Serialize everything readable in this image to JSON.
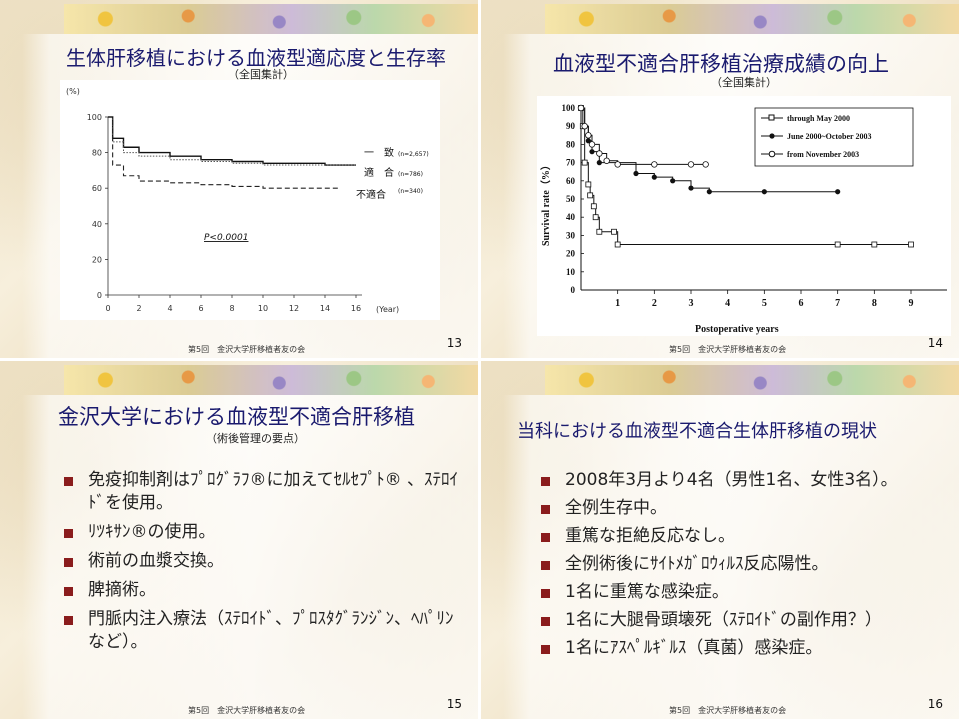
{
  "slides": [
    {
      "title": "生体肝移植における血液型適応度と生存率",
      "subtitle": "（全国集計）",
      "footer": "第5回　金沢大学肝移植者友の会",
      "page": "13",
      "chart": {
        "y_unit": "(%)",
        "x_unit": "(Year)",
        "y_ticks": [
          "0",
          "20",
          "40",
          "60",
          "80",
          "100"
        ],
        "x_ticks": [
          "0",
          "2",
          "4",
          "6",
          "8",
          "10",
          "12",
          "14",
          "16"
        ],
        "annotation": "P<0.0001",
        "legend": [
          {
            "label": "一　致",
            "n": "(n=2,657)"
          },
          {
            "label": "適　合",
            "n": "(n=786)"
          },
          {
            "label": "不適合",
            "n": "(n=340)"
          }
        ]
      }
    },
    {
      "title": "血液型不適合肝移植治療成績の向上",
      "subtitle": "（全国集計）",
      "footer": "第5回　金沢大学肝移植者友の会",
      "page": "14",
      "chart": {
        "ylabel": "Survival rate（%）",
        "xlabel": "Postoperative years",
        "y_ticks": [
          "0",
          "10",
          "20",
          "30",
          "40",
          "50",
          "60",
          "70",
          "80",
          "90",
          "100"
        ],
        "x_ticks": [
          "1",
          "2",
          "3",
          "4",
          "5",
          "6",
          "7",
          "8",
          "9"
        ],
        "legend": [
          "through May 2000",
          "June 2000~October 2003",
          "from November 2003"
        ]
      }
    },
    {
      "title": "金沢大学における血液型不適合肝移植",
      "subtitle": "（術後管理の要点）",
      "footer": "第5回　金沢大学肝移植者友の会",
      "page": "15",
      "bullets": [
        "免疫抑制剤はﾌﾟﾛｸﾞﾗﾌ®に加えてｾﾙｾﾌﾟﾄ® 、ｽﾃﾛｲﾄﾞを使用。",
        "ﾘﾂｷｻﾝ®の使用。",
        "術前の血漿交換。",
        "脾摘術。",
        "門脈内注入療法（ｽﾃﾛｲﾄﾞ、ﾌﾟﾛｽﾀｸﾞﾗﾝｼﾞﾝ、ﾍﾊﾟﾘﾝなど）。"
      ]
    },
    {
      "title": "当科における血液型不適合生体肝移植の現状",
      "footer": "第5回　金沢大学肝移植者友の会",
      "page": "16",
      "bullets": [
        "2008年3月より4名（男性1名、女性3名）。",
        "全例生存中。",
        "重篤な拒絶反応なし。",
        "全例術後にｻｲﾄﾒｶﾞﾛｳｨﾙｽ反応陽性。",
        "1名に重篤な感染症。",
        "1名に大腿骨頭壊死（ｽﾃﾛｲﾄﾞの副作用？）",
        "1名にｱｽﾍﾟﾙｷﾞﾙｽ（真菌）感染症。"
      ]
    }
  ],
  "chart_data": [
    {
      "type": "line",
      "x_unit": "years",
      "ylim": [
        0,
        100
      ],
      "xlim": [
        0,
        16
      ],
      "series": [
        {
          "name": "一　致",
          "x": [
            0,
            0.3,
            1,
            2,
            4,
            6,
            8,
            10,
            12,
            14,
            16
          ],
          "values": [
            100,
            88,
            83,
            80,
            78,
            76,
            75,
            74,
            74,
            73,
            73
          ]
        },
        {
          "name": "適　合",
          "x": [
            0,
            0.3,
            1,
            2,
            4,
            6,
            8,
            10,
            12,
            14,
            16
          ],
          "values": [
            100,
            86,
            80,
            78,
            76,
            75,
            74,
            73,
            73,
            73,
            73
          ]
        },
        {
          "name": "不適合",
          "x": [
            0,
            0.3,
            1,
            2,
            4,
            6,
            8,
            10,
            12,
            14,
            15
          ],
          "values": [
            100,
            73,
            67,
            64,
            63,
            62,
            61,
            60,
            60,
            60,
            60
          ]
        }
      ]
    },
    {
      "type": "line",
      "ylim": [
        0,
        100
      ],
      "xlim": [
        0,
        9
      ],
      "series": [
        {
          "name": "through May 2000",
          "x": [
            0,
            0.05,
            0.1,
            0.2,
            0.25,
            0.35,
            0.4,
            0.5,
            0.9,
            1.0,
            7.0,
            8.0,
            9.0
          ],
          "values": [
            100,
            90,
            70,
            58,
            52,
            46,
            40,
            32,
            32,
            25,
            25,
            25,
            25
          ]
        },
        {
          "name": "June 2000~October 2003",
          "x": [
            0,
            0.1,
            0.2,
            0.3,
            0.5,
            1.5,
            2.0,
            2.5,
            3.0,
            3.5,
            5.0,
            7.0
          ],
          "values": [
            100,
            90,
            82,
            76,
            70,
            64,
            62,
            60,
            56,
            54,
            54,
            54
          ]
        },
        {
          "name": "from November 2003",
          "x": [
            0,
            0.1,
            0.2,
            0.3,
            0.5,
            0.7,
            1.0,
            2.0,
            3.0,
            3.4
          ],
          "values": [
            100,
            90,
            85,
            80,
            75,
            71,
            69,
            69,
            69,
            69
          ]
        }
      ]
    }
  ]
}
